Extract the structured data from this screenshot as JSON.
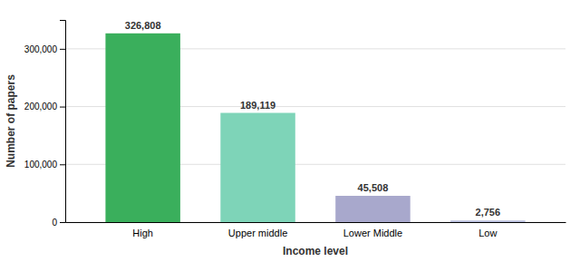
{
  "chart_data": {
    "type": "bar",
    "categories": [
      "High",
      "Upper middle",
      "Lower Middle",
      "Low"
    ],
    "values": [
      326808,
      189119,
      45508,
      2756
    ],
    "value_labels": [
      "326,808",
      "189,119",
      "45,508",
      "2,756"
    ],
    "data_labels": true,
    "colors": [
      "#3aaf5c",
      "#7ed4b8",
      "#a8a8cc",
      "#b8bedd"
    ],
    "xlabel": "Income level",
    "ylabel": "Number of papers",
    "ylim": [
      0,
      350000
    ],
    "yticks": [
      0,
      {
        "value": 100000,
        "label": "100,000"
      },
      {
        "value": 200000,
        "label": "200,000"
      },
      {
        "value": 300000,
        "label": "300,000"
      }
    ],
    "grid": true
  }
}
